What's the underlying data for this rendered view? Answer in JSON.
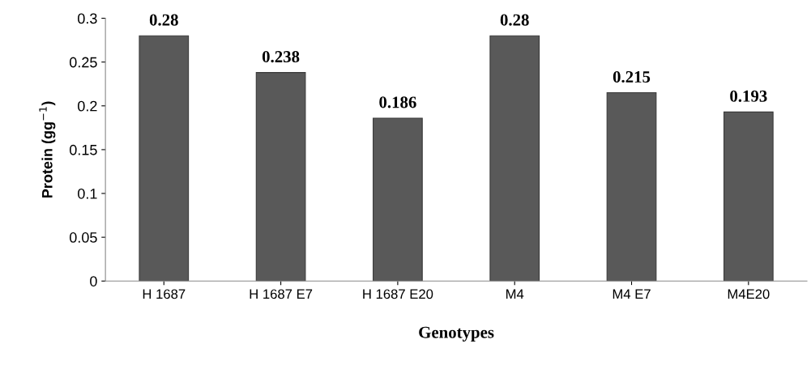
{
  "chart_data": {
    "type": "bar",
    "xlabel": "Genotypes",
    "ylabel": "Protein (gg$^{−1}$)",
    "categories": [
      "H 1687",
      "H 1687 E7",
      "H 1687 E20",
      "M4",
      "M4 E7",
      "M4E20"
    ],
    "values": [
      0.28,
      0.238,
      0.186,
      0.28,
      0.215,
      0.193
    ],
    "color": "#595959",
    "ylim": [
      0,
      0.3
    ],
    "yticks": [
      0,
      0.05,
      0.1,
      0.15,
      0.2,
      0.25,
      0.3
    ],
    "grid": false,
    "data_labels": true
  }
}
